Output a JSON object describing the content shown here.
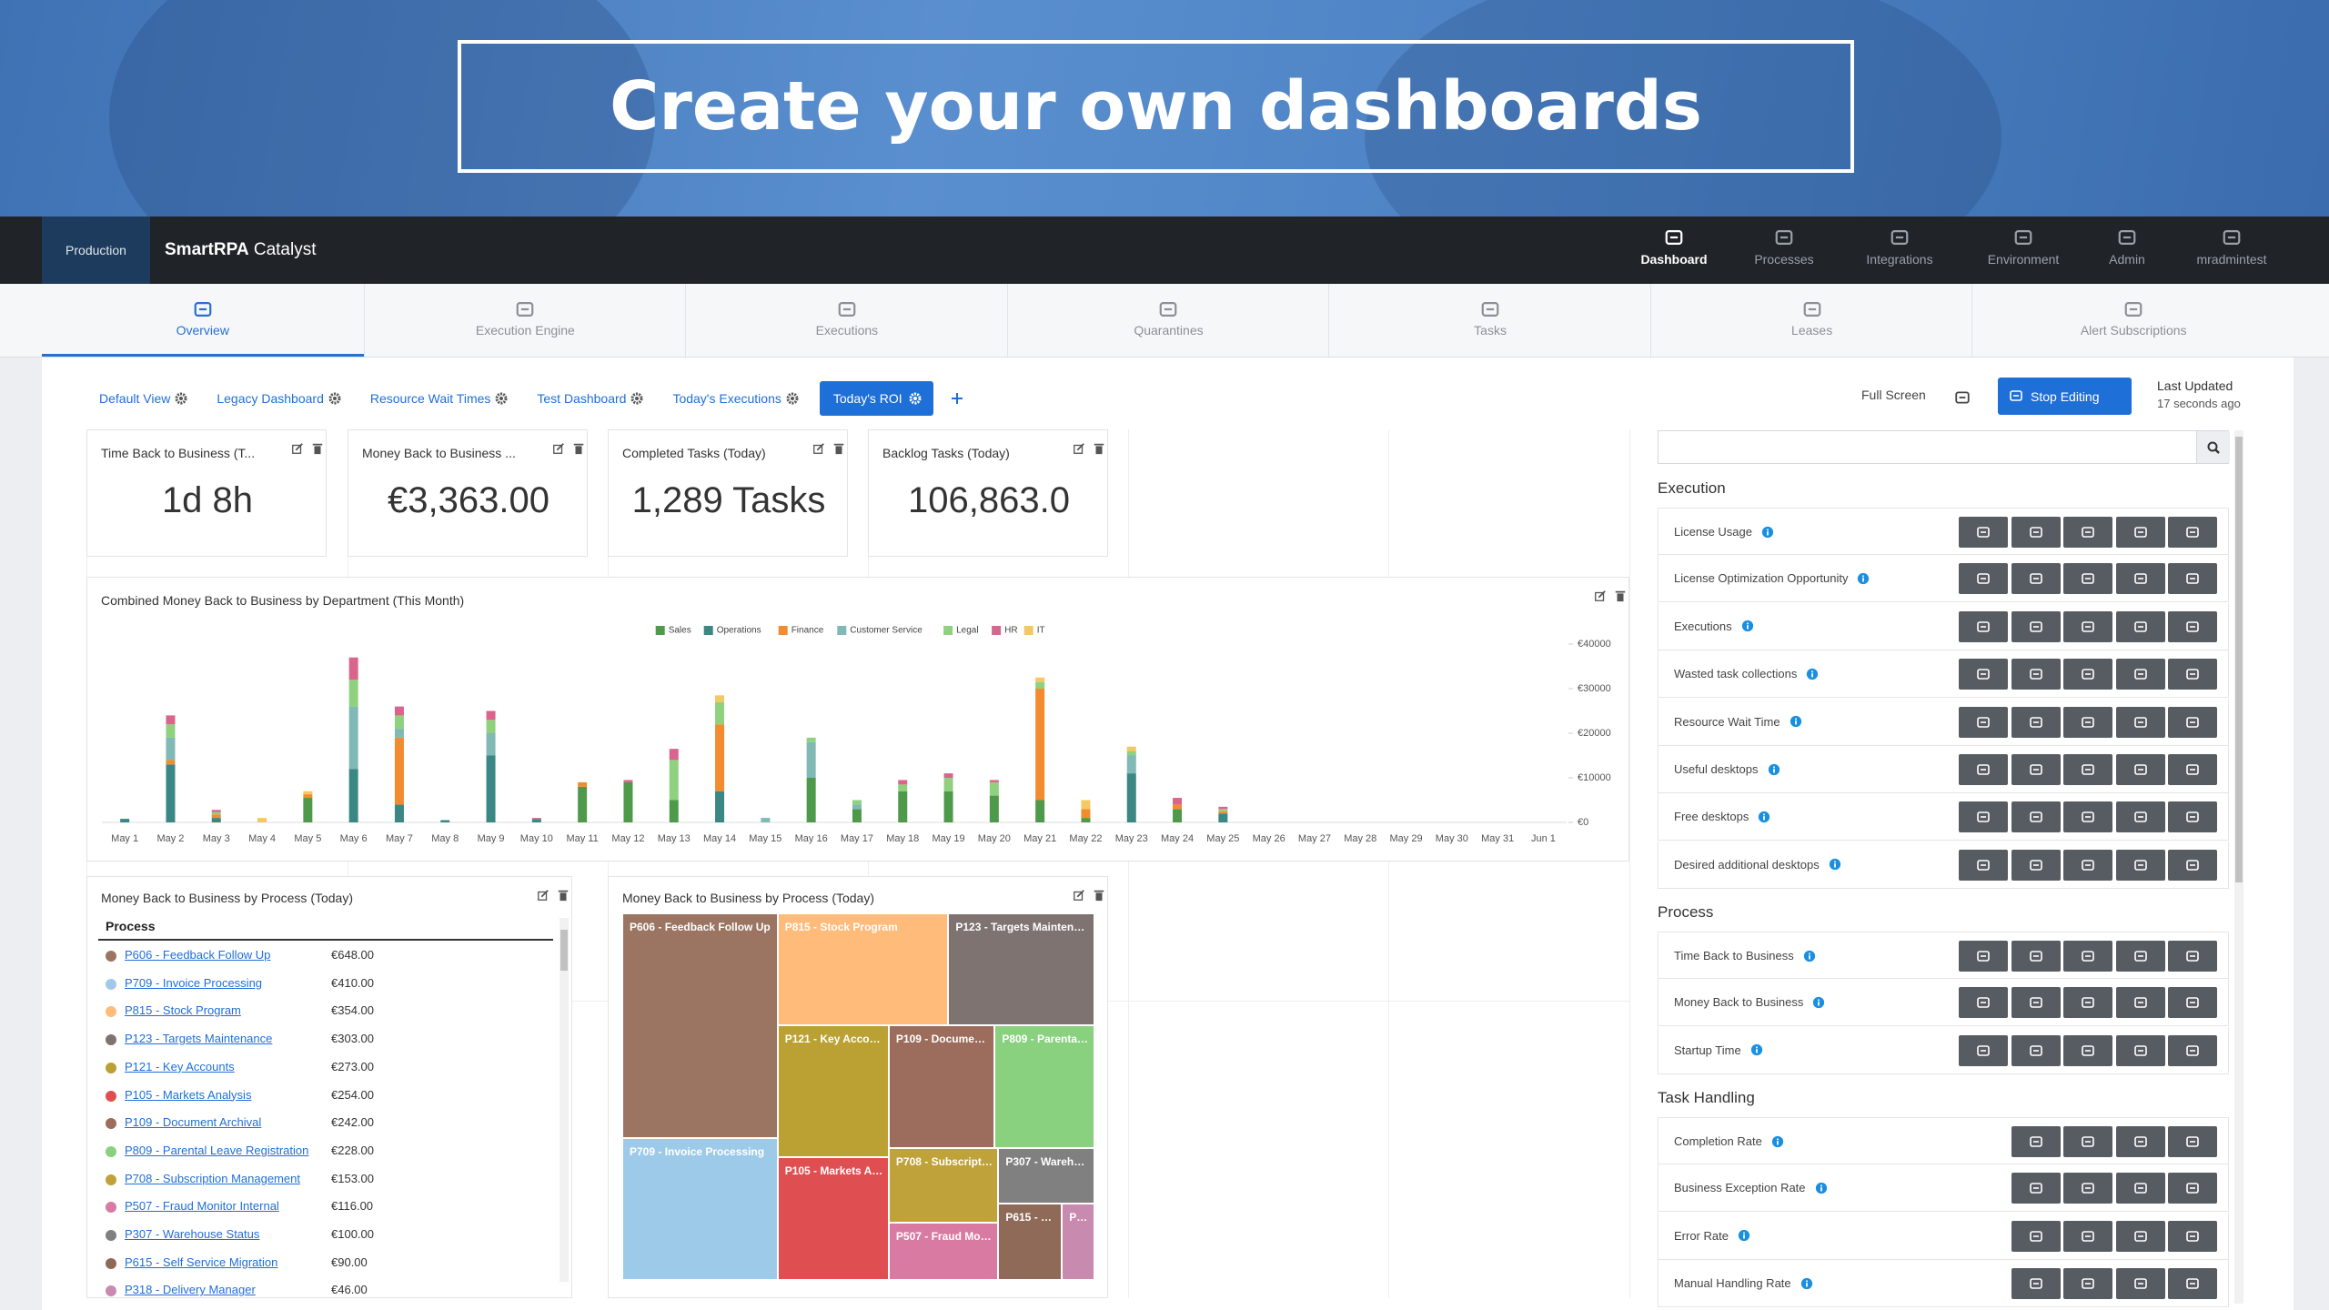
{
  "banner": {
    "title": "Create your own dashboards"
  },
  "topnav": {
    "environment": "Production",
    "brand": "SmartRPA",
    "product": "Catalyst",
    "active": 0,
    "items": [
      "Dashboard",
      "Processes",
      "Integrations",
      "Environment",
      "Admin",
      "mradmintest"
    ]
  },
  "subnav": {
    "active": 0,
    "items": [
      "Overview",
      "Execution Engine",
      "Executions",
      "Quarantines",
      "Tasks",
      "Leases",
      "Alert Subscriptions"
    ]
  },
  "dashboards": {
    "active": 5,
    "tabs": [
      "Default View",
      "Legacy Dashboard",
      "Resource Wait Times",
      "Test Dashboard",
      "Today's Executions",
      "Today's ROI"
    ],
    "full_screen": "Full Screen",
    "stop_editing": "Stop Editing",
    "last_updated": "Last Updated",
    "updated_ago": "17 seconds ago"
  },
  "tiles": [
    {
      "title": "Time Back to Business (T...",
      "value": "1d 8h"
    },
    {
      "title": "Money Back to Business ...",
      "value": "€3,363.00"
    },
    {
      "title": "Completed Tasks (Today)",
      "value": "1,289 Tasks"
    },
    {
      "title": "Backlog Tasks (Today)",
      "value": "106,863.0"
    }
  ],
  "list_panel": {
    "title": "Money Back to Business by Process (Today)",
    "column": "Process"
  },
  "sidebar": {
    "sections": [
      {
        "title": "Execution",
        "items": [
          "License Usage",
          "License Optimization Opportunity",
          "Executions",
          "Wasted task collections",
          "Resource Wait Time",
          "Useful desktops",
          "Free desktops",
          "Desired additional desktops"
        ]
      },
      {
        "title": "Process",
        "items": [
          "Time Back to Business",
          "Money Back to Business",
          "Startup Time"
        ]
      },
      {
        "title": "Task Handling",
        "items": [
          "Completion Rate",
          "Business Exception Rate",
          "Error Rate",
          "Manual Handling Rate"
        ]
      }
    ]
  },
  "chart_data": [
    {
      "type": "bar",
      "stacked": true,
      "legend": "top",
      "grid": false,
      "title": "Combined Money Back to Business by Department (This Month)",
      "categories": [
        "May 1",
        "May 2",
        "May 3",
        "May 4",
        "May 5",
        "May 6",
        "May 7",
        "May 8",
        "May 9",
        "May 10",
        "May 11",
        "May 12",
        "May 13",
        "May 14",
        "May 15",
        "May 16",
        "May 17",
        "May 18",
        "May 19",
        "May 20",
        "May 21",
        "May 22",
        "May 23",
        "May 24",
        "May 25",
        "May 26",
        "May 27",
        "May 28",
        "May 29",
        "May 30",
        "May 31",
        "Jun 1"
      ],
      "ylim": [
        0,
        40000
      ],
      "yticks": [
        {
          "value": 0,
          "label": "€0"
        },
        {
          "value": 10000,
          "label": "€10000"
        },
        {
          "value": 20000,
          "label": "€20000"
        },
        {
          "value": 30000,
          "label": "€30000"
        },
        {
          "value": 40000,
          "label": "€40000"
        }
      ],
      "series": [
        {
          "name": "Sales",
          "color": "#4e9a4a",
          "values": [
            0,
            0,
            0,
            0,
            5500,
            0,
            0,
            0,
            0,
            0,
            8000,
            9000,
            5000,
            0,
            0,
            10000,
            3000,
            7000,
            7000,
            6000,
            5000,
            1000,
            0,
            3000,
            0,
            0,
            0,
            0,
            0,
            0,
            0,
            0
          ]
        },
        {
          "name": "Operations",
          "color": "#3a8784",
          "values": [
            800,
            13000,
            1000,
            0,
            0,
            12000,
            4000,
            500,
            15000,
            700,
            0,
            0,
            0,
            7000,
            0,
            0,
            0,
            0,
            0,
            0,
            0,
            0,
            11000,
            0,
            2000,
            0,
            0,
            0,
            0,
            0,
            0,
            0
          ]
        },
        {
          "name": "Finance",
          "color": "#f28c2e",
          "values": [
            0,
            1000,
            800,
            0,
            800,
            0,
            15000,
            0,
            0,
            0,
            1000,
            0,
            0,
            15000,
            0,
            0,
            0,
            0,
            0,
            0,
            25000,
            2000,
            0,
            1000,
            500,
            0,
            0,
            0,
            0,
            0,
            0,
            0
          ]
        },
        {
          "name": "Customer Service",
          "color": "#80b9b5",
          "values": [
            0,
            5000,
            0,
            0,
            0,
            14000,
            2000,
            0,
            5000,
            0,
            0,
            0,
            0,
            0,
            1000,
            8000,
            1000,
            0,
            0,
            0,
            0,
            0,
            4000,
            0,
            0,
            0,
            0,
            0,
            0,
            0,
            0,
            0
          ]
        },
        {
          "name": "Legal",
          "color": "#8fd17f",
          "values": [
            0,
            3000,
            500,
            0,
            0,
            6000,
            3000,
            0,
            3000,
            0,
            0,
            0,
            9000,
            5000,
            0,
            1000,
            1000,
            1500,
            3000,
            3000,
            1500,
            0,
            1000,
            0,
            500,
            0,
            0,
            0,
            0,
            0,
            0,
            0
          ]
        },
        {
          "name": "HR",
          "color": "#d9648c",
          "values": [
            0,
            2000,
            500,
            0,
            0,
            5000,
            2000,
            0,
            2000,
            300,
            0,
            500,
            2500,
            0,
            0,
            0,
            0,
            1000,
            1000,
            500,
            0,
            0,
            0,
            1500,
            500,
            0,
            0,
            0,
            0,
            0,
            0,
            0
          ]
        },
        {
          "name": "IT",
          "color": "#f4c862",
          "values": [
            0,
            0,
            0,
            1000,
            700,
            0,
            0,
            0,
            0,
            0,
            0,
            0,
            0,
            1500,
            0,
            0,
            0,
            0,
            0,
            0,
            1000,
            2000,
            1000,
            0,
            0,
            0,
            0,
            0,
            0,
            0,
            0,
            0
          ]
        }
      ]
    },
    {
      "type": "treemap",
      "title": "Money Back to Business by Process (Today)",
      "categories": [
        "P606 - Feedback Follow Up",
        "P709 - Invoice Processing",
        "P815 - Stock Program",
        "P123 - Targets Maintenance",
        "P121 - Key Accounts",
        "P105 - Markets Analysis",
        "P109 - Document Archival",
        "P809 - Parental Leave Registration",
        "P708 - Subscription Management",
        "P507 - Fraud Monitor Internal",
        "P307 - Warehouse Status",
        "P615 - Self Service Migration",
        "P318 - Delivery Manager"
      ],
      "values": [
        648,
        410,
        354,
        303,
        273,
        254,
        242,
        228,
        153,
        116,
        100,
        90,
        46
      ],
      "value_labels": [
        "€648.00",
        "€410.00",
        "€354.00",
        "€303.00",
        "€273.00",
        "€254.00",
        "€242.00",
        "€228.00",
        "€153.00",
        "€116.00",
        "€100.00",
        "€90.00",
        "€46.00"
      ],
      "colors": [
        "#9b7462",
        "#9ecae9",
        "#ffbb7a",
        "#7f7371",
        "#bba033",
        "#df4f51",
        "#9c6c5c",
        "#89d17f",
        "#bfa23a",
        "#d97aa2",
        "#808080",
        "#8f6a58",
        "#c98ab0"
      ]
    }
  ]
}
